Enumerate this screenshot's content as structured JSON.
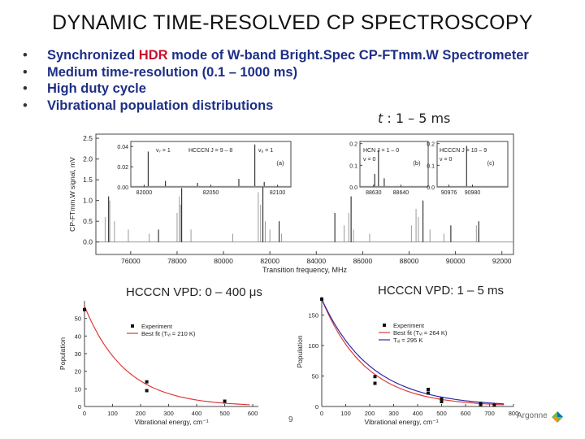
{
  "title": "DYNAMIC TIME-RESOLVED CP SPECTROSCOPY",
  "bullets": {
    "b1": {
      "pre": "Synchronized ",
      "hl": "HDR",
      "post": " mode of W-band Bright.Spec CP-FTmm.W Spectrometer"
    },
    "b2": "Medium time-resolution (0.1 – 1000 ms)",
    "b3": "High duty cycle",
    "b4": "Vibrational population distributions",
    "bullet_glyph": "•"
  },
  "t_label": {
    "t": "t",
    "rest": " : 1 – 5 ms"
  },
  "vpd_left_label": "HCCCN VPD: 0 – 400 μs",
  "vpd_right_label": "HCCCN VPD: 1 – 5 ms",
  "page_number": "9",
  "logo_text": "Argonne",
  "colors": {
    "bullet_text": "#1e2f86",
    "highlight": "#c8102e",
    "fit_red": "#e03a3a",
    "fit_blue": "#2a2aa8"
  },
  "chart_data": [
    {
      "id": "main",
      "type": "line",
      "xlabel": "Transition frequency, MHz",
      "ylabel": "CP-FTmm.W signal, mV",
      "xlim": [
        74500,
        92500
      ],
      "ylim": [
        -0.3,
        2.6
      ],
      "xticks": [
        76000,
        78000,
        80000,
        82000,
        84000,
        86000,
        88000,
        90000,
        92000
      ],
      "yticks": [
        0.0,
        0.5,
        1.0,
        1.5,
        2.0,
        2.5
      ],
      "ytick_labels": [
        "0.0",
        "0.5",
        "1.0",
        "1.5",
        "2.0",
        "2.5"
      ],
      "peaks_gray": [
        [
          74900,
          0.6
        ],
        [
          75100,
          1.0
        ],
        [
          75300,
          0.5
        ],
        [
          75900,
          0.3
        ],
        [
          76800,
          0.2
        ],
        [
          78000,
          0.7
        ],
        [
          78100,
          1.1
        ],
        [
          78150,
          0.9
        ],
        [
          78600,
          0.3
        ],
        [
          80400,
          0.2
        ],
        [
          81500,
          1.2
        ],
        [
          81600,
          0.9
        ],
        [
          81800,
          0.5
        ],
        [
          82000,
          0.3
        ],
        [
          82500,
          0.2
        ],
        [
          85200,
          0.4
        ],
        [
          85400,
          0.7
        ],
        [
          85600,
          0.3
        ],
        [
          86300,
          0.2
        ],
        [
          88100,
          0.4
        ],
        [
          88300,
          0.8
        ],
        [
          88400,
          0.6
        ],
        [
          88900,
          0.3
        ],
        [
          89500,
          0.2
        ],
        [
          90900,
          0.4
        ],
        [
          91000,
          0.3
        ]
      ],
      "peaks_black": [
        [
          75050,
          1.1
        ],
        [
          77200,
          0.3
        ],
        [
          78200,
          1.3
        ],
        [
          81700,
          1.7
        ],
        [
          82400,
          0.5
        ],
        [
          84800,
          0.7
        ],
        [
          85500,
          1.1
        ],
        [
          88600,
          1.0
        ],
        [
          89800,
          0.4
        ],
        [
          91000,
          0.5
        ]
      ]
    },
    {
      "id": "inset_a",
      "type": "line",
      "label": "(a)",
      "annotations": [
        "v₇ = 1",
        "HCCCN J = 9 – 8",
        "v₆ = 1"
      ],
      "xlim": [
        81990,
        82110
      ],
      "ylim": [
        0.0,
        0.045
      ],
      "xticks": [
        82000,
        82050,
        82100
      ],
      "yticks": [
        0.0,
        0.02,
        0.04
      ],
      "ytick_labels": [
        "0.00",
        "0.02",
        "0.04"
      ],
      "peaks": [
        [
          82003,
          0.035
        ],
        [
          82016,
          0.006
        ],
        [
          82040,
          0.004
        ],
        [
          82071,
          0.008
        ],
        [
          82083,
          0.042
        ],
        [
          82090,
          0.005
        ]
      ]
    },
    {
      "id": "inset_b",
      "type": "line",
      "label": "(b)",
      "annotations": [
        "HCN J = 1 – 0",
        "v = 0"
      ],
      "xlim": [
        88625,
        88650
      ],
      "ylim": [
        0.0,
        0.21
      ],
      "xticks": [
        88630,
        88640
      ],
      "yticks": [
        0.0,
        0.1,
        0.2
      ],
      "ytick_labels": [
        "0.0",
        "0.1",
        "0.2"
      ],
      "peaks": [
        [
          88630.4,
          0.06
        ],
        [
          88631.8,
          0.17
        ],
        [
          88633.9,
          0.04
        ]
      ]
    },
    {
      "id": "inset_c",
      "type": "line",
      "label": "(c)",
      "annotations": [
        "HCCCN J = 10 – 9",
        "v = 0"
      ],
      "xlim": [
        90974,
        90986
      ],
      "ylim": [
        0.0,
        0.21
      ],
      "xticks": [
        90976,
        90980
      ],
      "yticks": [
        0.0,
        0.1,
        0.2
      ],
      "ytick_labels": [
        "0.0",
        "0.1",
        "0.2"
      ],
      "peaks": [
        [
          90979.0,
          0.19
        ]
      ]
    },
    {
      "id": "vpd_left",
      "type": "scatter",
      "xlabel": "Vibrational energy, cm⁻¹",
      "ylabel": "Population",
      "xlim": [
        0,
        620
      ],
      "ylim": [
        0,
        60
      ],
      "xticks": [
        0,
        100,
        200,
        300,
        400,
        500,
        600
      ],
      "yticks": [
        0,
        10,
        20,
        30,
        40,
        50
      ],
      "legend": [
        "Experiment",
        "Best fit (Tᵥᵢ = 210 K)"
      ],
      "series": [
        {
          "name": "Experiment",
          "x": [
            0,
            222,
            222,
            500
          ],
          "y": [
            55,
            14,
            9,
            3
          ]
        },
        {
          "name": "Best fit",
          "curve": "exp",
          "A": 57,
          "T": 210
        }
      ]
    },
    {
      "id": "vpd_right",
      "type": "scatter",
      "xlabel": "Vibrational energy, cm⁻¹",
      "ylabel": "Population",
      "xlim": [
        0,
        800
      ],
      "ylim": [
        0,
        180
      ],
      "xticks": [
        0,
        100,
        200,
        300,
        400,
        500,
        600,
        700,
        800
      ],
      "yticks": [
        0,
        50,
        100,
        150
      ],
      "legend": [
        "Experiment",
        "Best fit (Tᵥᵢ = 264 K)",
        "Tᵥᵢ = 295 K"
      ],
      "series": [
        {
          "name": "Experiment",
          "x": [
            0,
            222,
            222,
            444,
            444,
            500,
            500,
            663,
            663,
            720
          ],
          "y": [
            176,
            49,
            38,
            28,
            22,
            12,
            8,
            5,
            3,
            2
          ]
        },
        {
          "name": "Best fit",
          "curve": "exp",
          "A": 176,
          "T": 264
        },
        {
          "name": "T = 295 K",
          "curve": "exp",
          "A": 176,
          "T": 295
        }
      ]
    }
  ]
}
